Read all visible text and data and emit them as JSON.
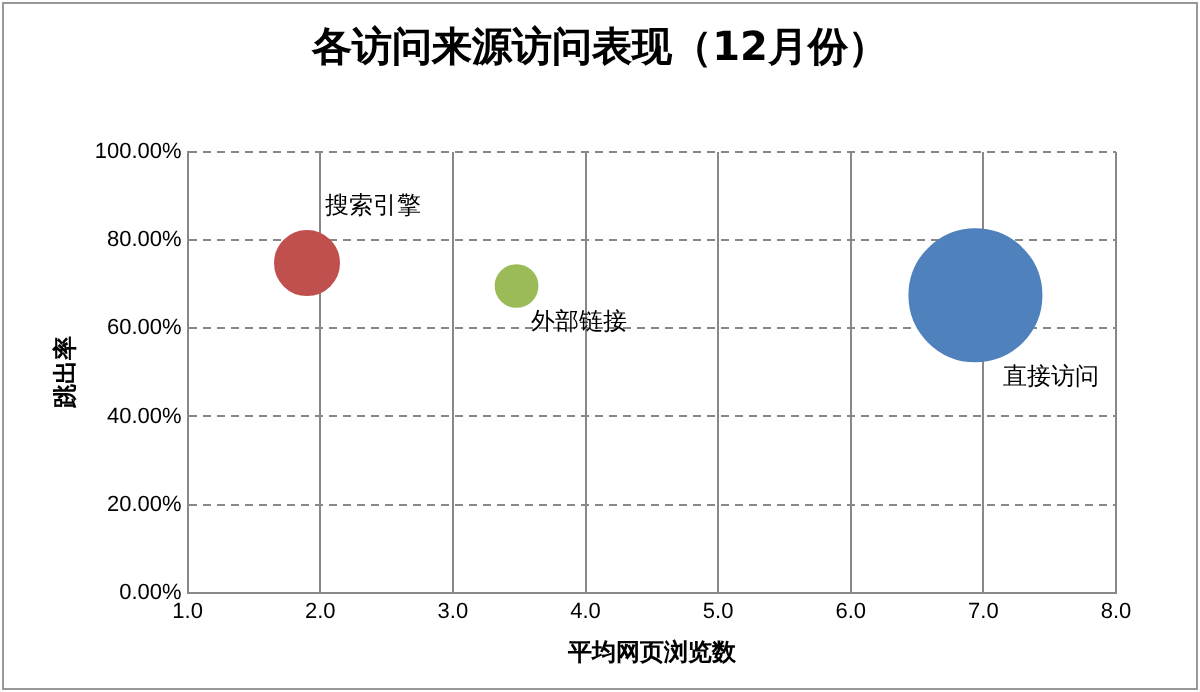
{
  "chart_data": {
    "type": "bubble",
    "title": "各访问来源访问表现（12月份）",
    "xlabel": "平均网页浏览数",
    "ylabel": "跳出率",
    "series": [
      {
        "name": "搜索引擎",
        "color": "#c0504d",
        "x": [
          1.9
        ],
        "values": [
          74.8
        ],
        "sizes": [
          0.235
        ]
      },
      {
        "name": "外部链接",
        "color": "#9bbb59",
        "x": [
          3.48
        ],
        "values": [
          69.6
        ],
        "sizes": [
          0.1
        ]
      },
      {
        "name": "直接访问",
        "color": "#4f81bd",
        "x": [
          6.94
        ],
        "values": [
          67.5
        ],
        "sizes": [
          1
        ]
      }
    ],
    "xlim": [
      1,
      8
    ],
    "xticks": [
      {
        "value": 1,
        "label": "1.0"
      },
      {
        "value": 2,
        "label": "2.0"
      },
      {
        "value": 3,
        "label": "3.0"
      },
      {
        "value": 4,
        "label": "4.0"
      },
      {
        "value": 5,
        "label": "5.0"
      },
      {
        "value": 6,
        "label": "6.0"
      },
      {
        "value": 7,
        "label": "7.0"
      },
      {
        "value": 8,
        "label": "8.0"
      }
    ],
    "ylim": [
      0,
      100
    ],
    "yticks": [
      {
        "value": 0,
        "label": "0.00%"
      },
      {
        "value": 20,
        "label": "20.00%"
      },
      {
        "value": 40,
        "label": "40.00%"
      },
      {
        "value": 60,
        "label": "60.00%"
      },
      {
        "value": 80,
        "label": "80.00%"
      },
      {
        "value": 100,
        "label": "100.00%"
      }
    ],
    "grid": true,
    "legend": false
  }
}
